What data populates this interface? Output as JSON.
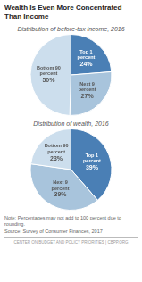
{
  "title": "Wealth Is Even More Concentrated\nThan Income",
  "annotations": [
    "Note: Percentages may not add to 100 percent due to rounding.\nSource: Survey of Consumer Finances, 2017",
    "CENTER ON BUDGET AND POLICY PRIORITIES | CBPP.ORG"
  ],
  "chart_data": [
    {
      "type": "pie",
      "title": "Distribution of before-tax income, 2016",
      "categories": [
        "Top 1\npercent",
        "Next 9\npercent",
        "Bottom 90\npercent"
      ],
      "values": [
        24,
        27,
        50
      ],
      "value_labels": [
        "24%",
        "27%",
        "50%"
      ],
      "colors": [
        "#4a7fb5",
        "#a8c4dc",
        "#ccdeed"
      ],
      "data_labels": true
    },
    {
      "type": "pie",
      "title": "Distribution of wealth, 2016",
      "categories": [
        "Top 1\npercent",
        "Next 9\npercent",
        "Bottom 90\npercent"
      ],
      "values": [
        39,
        39,
        23
      ],
      "value_labels": [
        "39%",
        "39%",
        "23%"
      ],
      "colors": [
        "#4a7fb5",
        "#a8c4dc",
        "#ccdeed"
      ],
      "data_labels": true
    }
  ]
}
